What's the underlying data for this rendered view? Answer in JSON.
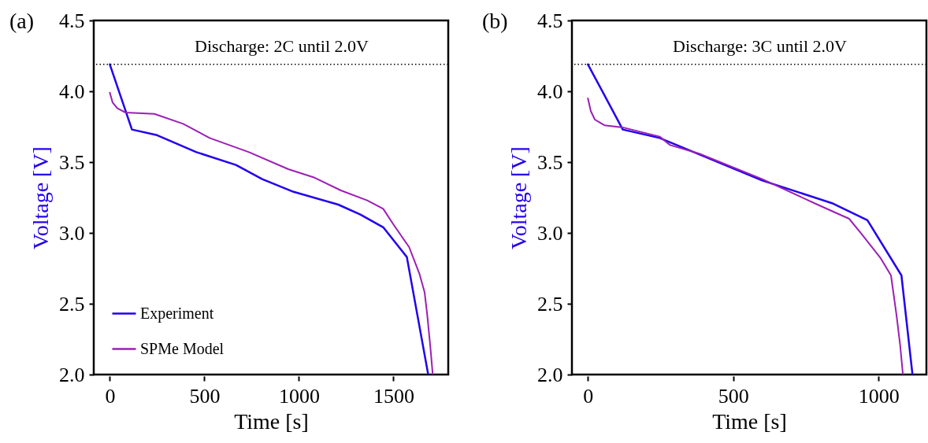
{
  "chart_data": [
    {
      "type": "line",
      "title": "(a)",
      "xlabel": "Time [s]",
      "ylabel": "Voltage [V]",
      "annotations": [
        "Discharge: 2C until 2.0V"
      ],
      "xlim": [
        -85,
        1790
      ],
      "ylim": [
        2.0,
        4.5
      ],
      "xticks": [
        0,
        500,
        1000,
        1500
      ],
      "yticks": [
        {
          "value": 2.0,
          "label": "2.0"
        },
        2.5,
        {
          "value": 3.0,
          "label": "3.0"
        },
        3.5,
        {
          "value": 4.0,
          "label": "4.0"
        },
        4.5
      ],
      "grid": false,
      "legend": "bottom left",
      "ref_lines": [
        {
          "axis": "y",
          "value": 4.19,
          "line_style": "dotted",
          "color": "#000000"
        }
      ],
      "series": [
        {
          "name": "Experiment",
          "color": "#2200ee",
          "x": [
            0,
            117,
            250,
            458,
            667,
            806,
            972,
            1208,
            1325,
            1446,
            1571,
            1684
          ],
          "values": [
            4.19,
            3.73,
            3.69,
            3.57,
            3.48,
            3.38,
            3.29,
            3.2,
            3.13,
            3.04,
            2.83,
            2.0
          ]
        },
        {
          "name": "SPMe Model",
          "color": "#9b1fb5",
          "x": [
            0,
            15,
            40,
            83,
            236,
            388,
            528,
            736,
            944,
            1083,
            1222,
            1361,
            1446,
            1500,
            1583,
            1638,
            1665,
            1679,
            1695,
            1708
          ],
          "values": [
            3.99,
            3.92,
            3.88,
            3.85,
            3.84,
            3.77,
            3.67,
            3.57,
            3.45,
            3.39,
            3.3,
            3.23,
            3.17,
            3.06,
            2.9,
            2.71,
            2.58,
            2.42,
            2.2,
            2.0
          ]
        }
      ]
    },
    {
      "type": "line",
      "title": "(b)",
      "xlabel": "Time [s]",
      "ylabel": "Voltage [V]",
      "annotations": [
        "Discharge: 3C until 2.0V"
      ],
      "xlim": [
        -55,
        1165
      ],
      "ylim": [
        2.0,
        4.5
      ],
      "xticks": [
        0,
        500,
        1000
      ],
      "yticks": [
        {
          "value": 2.0,
          "label": "2.0"
        },
        2.5,
        {
          "value": 3.0,
          "label": "3.0"
        },
        3.5,
        {
          "value": 4.0,
          "label": "4.0"
        },
        4.5
      ],
      "grid": false,
      "ref_lines": [
        {
          "axis": "y",
          "value": 4.19,
          "line_style": "dotted",
          "color": "#000000"
        }
      ],
      "series": [
        {
          "color": "#2200ee",
          "x": [
            0,
            120,
            247,
            600,
            840,
            962,
            1079,
            1117
          ],
          "values": [
            4.19,
            3.73,
            3.67,
            3.37,
            3.21,
            3.09,
            2.7,
            2.0
          ]
        },
        {
          "color": "#9b1fb5",
          "x": [
            0,
            10,
            24,
            57,
            120,
            247,
            283,
            383,
            600,
            790,
            899,
            943,
            1008,
            1043,
            1062,
            1075,
            1084
          ],
          "values": [
            3.95,
            3.86,
            3.8,
            3.76,
            3.745,
            3.68,
            3.62,
            3.56,
            3.38,
            3.2,
            3.1,
            2.99,
            2.82,
            2.7,
            2.42,
            2.2,
            2.0
          ]
        }
      ]
    }
  ]
}
